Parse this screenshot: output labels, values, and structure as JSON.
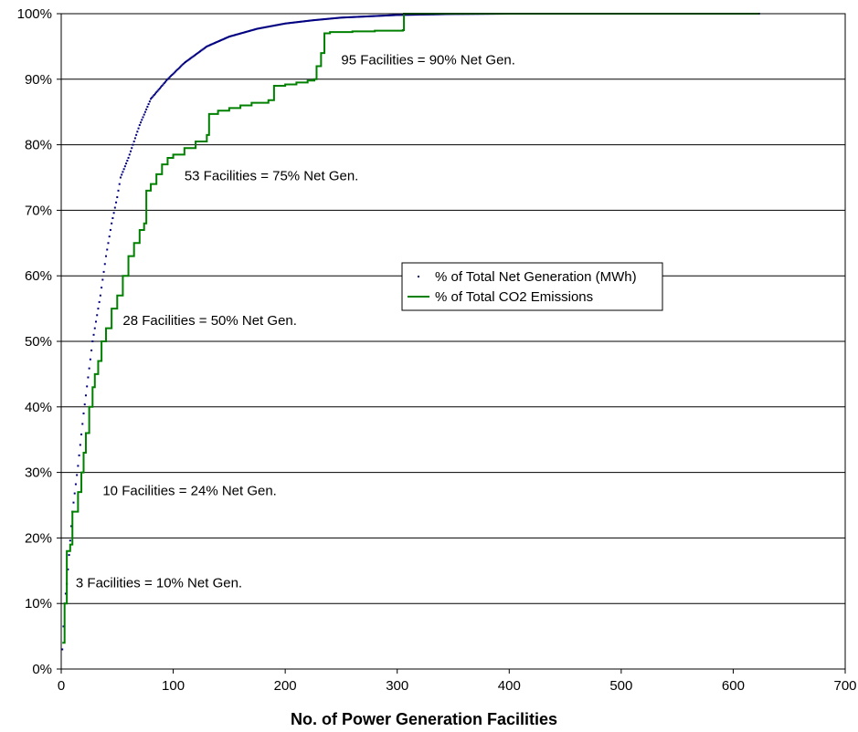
{
  "chart_data": {
    "type": "line",
    "title": "",
    "xlabel": "No. of Power Generation Facilities",
    "ylabel": "",
    "xlim": [
      0,
      700
    ],
    "ylim": [
      0,
      100
    ],
    "x_ticks": [
      "0",
      "100",
      "200",
      "300",
      "400",
      "500",
      "600",
      "700"
    ],
    "y_ticks": [
      "0%",
      "10%",
      "20%",
      "30%",
      "40%",
      "50%",
      "60%",
      "70%",
      "80%",
      "90%",
      "100%"
    ],
    "grid": "horizontal",
    "legend_position": "center-right",
    "series": [
      {
        "name": "% of Total Net Generation (MWh)",
        "style": "dotted",
        "color": "#000080",
        "x": [
          1,
          3,
          5,
          10,
          15,
          20,
          28,
          35,
          40,
          45,
          50,
          53,
          60,
          70,
          80,
          95,
          110,
          130,
          150,
          175,
          200,
          225,
          250,
          275,
          300,
          350,
          400,
          500,
          623
        ],
        "y": [
          3,
          10,
          13,
          24,
          31,
          39,
          50,
          57,
          63,
          68,
          72,
          75,
          78,
          83,
          87,
          90,
          92.5,
          95,
          96.5,
          97.7,
          98.5,
          99,
          99.4,
          99.6,
          99.8,
          99.95,
          100,
          100,
          100
        ]
      },
      {
        "name": "% of Total CO2 Emissions",
        "style": "solid",
        "color": "#008000",
        "x": [
          1,
          3,
          5,
          8,
          10,
          12,
          15,
          18,
          20,
          22,
          25,
          28,
          30,
          33,
          36,
          40,
          45,
          50,
          55,
          60,
          65,
          70,
          74,
          76,
          80,
          85,
          90,
          95,
          100,
          110,
          120,
          130,
          132,
          140,
          150,
          160,
          170,
          185,
          190,
          200,
          210,
          220,
          226,
          228,
          232,
          235,
          240,
          260,
          280,
          305,
          306,
          320,
          400,
          500,
          623
        ],
        "y": [
          4,
          10,
          18,
          19,
          24,
          24,
          27,
          30,
          33,
          36,
          40,
          43,
          45,
          47,
          50,
          52,
          55,
          57,
          60,
          63,
          65,
          67,
          68,
          73,
          74,
          75.5,
          77,
          78,
          78.5,
          79.5,
          80.5,
          81.5,
          84.7,
          85.2,
          85.6,
          86,
          86.4,
          86.8,
          89,
          89.2,
          89.5,
          89.8,
          90,
          92,
          94,
          97,
          97.2,
          97.3,
          97.4,
          97.5,
          100,
          100,
          100,
          100,
          100
        ]
      }
    ],
    "annotations": [
      {
        "text": "3 Facilities = 10% Net Gen.",
        "x": 13,
        "y": 12.5
      },
      {
        "text": "10 Facilities = 24% Net Gen.",
        "x": 37,
        "y": 26.5
      },
      {
        "text": "28 Facilities = 50% Net Gen.",
        "x": 55,
        "y": 52.5
      },
      {
        "text": "53 Facilities = 75% Net Gen.",
        "x": 110,
        "y": 74.6
      },
      {
        "text": "95 Facilities = 90% Net Gen.",
        "x": 250,
        "y": 92.3
      }
    ]
  }
}
